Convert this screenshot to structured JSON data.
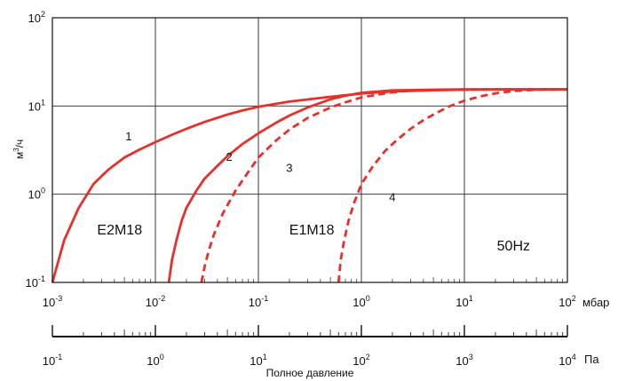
{
  "chart_data": {
    "type": "line",
    "xscale": "log",
    "yscale": "log",
    "xlim": [
      0.001,
      100
    ],
    "ylim": [
      0.1,
      100
    ],
    "grid": true,
    "ylabel": {
      "base": "м",
      "sup": "3",
      "tail": "/ч"
    },
    "x_unit": "мбар",
    "second_axis_unit": "Па",
    "bottom_label": "Полное давление",
    "x_ticks": [
      {
        "value": 0.001,
        "base": "10",
        "exp": "-3"
      },
      {
        "value": 0.01,
        "base": "10",
        "exp": "-2"
      },
      {
        "value": 0.1,
        "base": "10",
        "exp": "-1"
      },
      {
        "value": 1,
        "base": "10",
        "exp": "0"
      },
      {
        "value": 10,
        "base": "10",
        "exp": "1"
      },
      {
        "value": 100,
        "base": "10",
        "exp": "2"
      }
    ],
    "y_ticks": [
      {
        "value": 0.1,
        "base": "10",
        "exp": "-1"
      },
      {
        "value": 1,
        "base": "10",
        "exp": "0"
      },
      {
        "value": 10,
        "base": "10",
        "exp": "1"
      },
      {
        "value": 100,
        "base": "10",
        "exp": "2"
      }
    ],
    "pa_ticks": [
      {
        "value": 0.1,
        "base": "10",
        "exp": "-1"
      },
      {
        "value": 1,
        "base": "10",
        "exp": "0"
      },
      {
        "value": 10,
        "base": "10",
        "exp": "1"
      },
      {
        "value": 100,
        "base": "10",
        "exp": "2"
      },
      {
        "value": 1000,
        "base": "10",
        "exp": "3"
      },
      {
        "value": 10000,
        "base": "10",
        "exp": "4"
      }
    ],
    "series_color": "#e8302a",
    "series": [
      {
        "name": "1",
        "style": "solid",
        "x": [
          0.001,
          0.0013,
          0.0018,
          0.0025,
          0.0035,
          0.005,
          0.007,
          0.01,
          0.015,
          0.02,
          0.03,
          0.05,
          0.07,
          0.1,
          0.2,
          0.5,
          1,
          2,
          5,
          10,
          20,
          50,
          100
        ],
        "y": [
          0.1,
          0.3,
          0.7,
          1.3,
          1.9,
          2.6,
          3.2,
          3.9,
          4.8,
          5.5,
          6.6,
          8.0,
          8.9,
          9.8,
          11.2,
          12.7,
          13.8,
          14.6,
          15.1,
          15.3,
          15.4,
          15.4,
          15.4
        ]
      },
      {
        "name": "2",
        "style": "solid",
        "x": [
          0.0135,
          0.0145,
          0.016,
          0.018,
          0.02,
          0.025,
          0.03,
          0.04,
          0.05,
          0.07,
          0.1,
          0.15,
          0.2,
          0.3,
          0.5,
          0.7,
          1,
          2,
          5,
          10,
          20,
          50,
          100
        ],
        "y": [
          0.1,
          0.18,
          0.3,
          0.5,
          0.7,
          1.1,
          1.5,
          2.1,
          2.7,
          3.7,
          4.9,
          6.5,
          7.8,
          9.6,
          11.9,
          13.1,
          14.1,
          15.0,
          15.3,
          15.4,
          15.4,
          15.4,
          15.4
        ]
      },
      {
        "name": "3",
        "style": "dashed",
        "x": [
          0.028,
          0.03,
          0.033,
          0.037,
          0.045,
          0.06,
          0.08,
          0.1,
          0.15,
          0.2,
          0.3,
          0.5,
          0.7,
          1,
          1.5,
          2,
          3,
          5,
          10,
          20,
          50,
          100
        ],
        "y": [
          0.1,
          0.15,
          0.23,
          0.35,
          0.6,
          1.1,
          1.8,
          2.6,
          4.1,
          5.4,
          7.3,
          9.6,
          11.0,
          12.5,
          13.6,
          14.3,
          14.9,
          15.2,
          15.4,
          15.4,
          15.4,
          15.4
        ]
      },
      {
        "name": "4",
        "style": "dashed",
        "x": [
          0.6,
          0.63,
          0.68,
          0.75,
          0.85,
          1,
          1.3,
          1.7,
          2.2,
          3,
          4,
          5,
          7,
          10,
          15,
          20,
          30,
          50,
          100
        ],
        "y": [
          0.1,
          0.18,
          0.3,
          0.5,
          0.8,
          1.3,
          2.1,
          3.1,
          4.1,
          5.5,
          6.9,
          8.0,
          9.8,
          11.5,
          13.0,
          13.9,
          14.8,
          15.3,
          15.4
        ]
      }
    ],
    "series_labels": [
      {
        "text": "1",
        "x": 0.0055,
        "y": 4.1
      },
      {
        "text": "2",
        "x": 0.052,
        "y": 2.4
      },
      {
        "text": "3",
        "x": 0.2,
        "y": 1.8
      },
      {
        "text": "4",
        "x": 2.0,
        "y": 0.83
      }
    ],
    "annotations": [
      {
        "name": "model-label-e2m18",
        "text": "E2M18",
        "x": 0.0045,
        "y": 0.35
      },
      {
        "name": "model-label-e1m18",
        "text": "E1M18",
        "x": 0.33,
        "y": 0.35
      },
      {
        "name": "frequency-label",
        "text": "50Hz",
        "x": 30,
        "y": 0.23
      }
    ]
  }
}
